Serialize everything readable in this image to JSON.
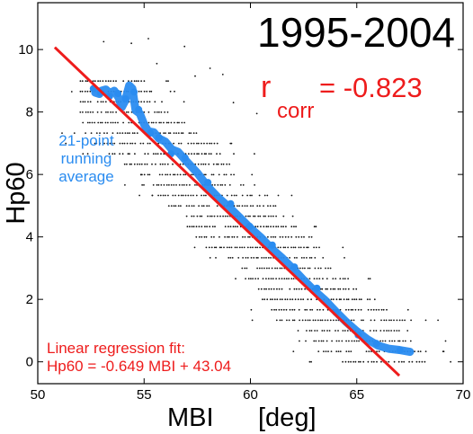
{
  "chart_data": {
    "type": "scatter",
    "title": "1995-2004",
    "xlabel_main": "MBI",
    "xlabel_unit": "[deg]",
    "ylabel": "Hp60",
    "xlim": [
      50,
      70
    ],
    "ylim": [
      -0.7,
      11.5
    ],
    "xticks": [
      50,
      55,
      60,
      65,
      70
    ],
    "yticks": [
      0,
      2,
      4,
      6,
      8,
      10
    ],
    "grid": false,
    "correlation": {
      "symbol": "r",
      "subscript": "corr",
      "equals": "= -0.823",
      "value": -0.823
    },
    "regression": {
      "label_line1": "Linear regression fit:",
      "label_line2": "Hp60 = -0.649 MBI + 43.04",
      "slope": -0.649,
      "intercept": 43.04,
      "x_range": [
        50.8,
        67.0
      ],
      "color": "#ee1c1c"
    },
    "running_average": {
      "label_lines": [
        "21-point",
        "running",
        "average"
      ],
      "color": "#2a8cf0",
      "points": [
        [
          52.7,
          8.62
        ],
        [
          52.9,
          8.58
        ],
        [
          53.0,
          8.68
        ],
        [
          53.2,
          8.72
        ],
        [
          53.4,
          8.6
        ],
        [
          53.6,
          8.68
        ],
        [
          53.8,
          8.46
        ],
        [
          53.95,
          8.15
        ],
        [
          54.1,
          8.35
        ],
        [
          54.3,
          8.85
        ],
        [
          54.45,
          8.75
        ],
        [
          54.6,
          8.05
        ],
        [
          54.8,
          7.95
        ],
        [
          55.0,
          7.6
        ],
        [
          55.2,
          7.38
        ],
        [
          55.45,
          7.35
        ],
        [
          55.7,
          7.15
        ],
        [
          56.0,
          7.05
        ],
        [
          56.3,
          6.8
        ],
        [
          56.6,
          6.72
        ],
        [
          57.0,
          6.42
        ],
        [
          57.5,
          6.05
        ],
        [
          58.0,
          5.6
        ],
        [
          58.5,
          5.25
        ],
        [
          59.0,
          4.95
        ],
        [
          59.5,
          4.62
        ],
        [
          60.0,
          4.28
        ],
        [
          60.5,
          3.98
        ],
        [
          61.0,
          3.62
        ],
        [
          61.5,
          3.32
        ],
        [
          62.0,
          2.98
        ],
        [
          62.5,
          2.62
        ],
        [
          63.0,
          2.28
        ],
        [
          63.5,
          1.98
        ],
        [
          64.0,
          1.62
        ],
        [
          64.5,
          1.28
        ],
        [
          65.0,
          0.98
        ],
        [
          65.5,
          0.72
        ],
        [
          66.0,
          0.52
        ],
        [
          66.5,
          0.42
        ],
        [
          67.0,
          0.38
        ],
        [
          67.5,
          0.32
        ]
      ]
    },
    "scatter": {
      "color": "#111111",
      "level_step": 0.333,
      "levels_max": 9.0,
      "band_halfwidth": 2.6,
      "outliers": [
        [
          53.1,
          10.25
        ],
        [
          54.4,
          10.2
        ],
        [
          56.9,
          10.1
        ],
        [
          58.1,
          9.4
        ],
        [
          52.3,
          9.1
        ],
        [
          55.6,
          9.55
        ],
        [
          57.4,
          9.15
        ],
        [
          59.2,
          8.3
        ],
        [
          60.3,
          7.95
        ],
        [
          51.6,
          8.65
        ],
        [
          55.2,
          10.35
        ],
        [
          58.7,
          9.2
        ]
      ]
    }
  }
}
